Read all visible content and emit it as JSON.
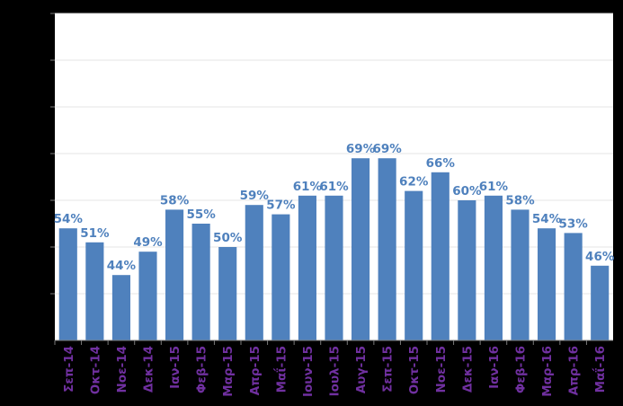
{
  "chart_data": {
    "type": "bar",
    "categories": [
      "Σεπ-14",
      "Οκτ-14",
      "Νοε-14",
      "Δεκ-14",
      "Ιαν-15",
      "Φεβ-15",
      "Μαρ-15",
      "Απρ-15",
      "Μαΐ-15",
      "Ιουν-15",
      "Ιουλ-15",
      "Αυγ-15",
      "Σεπ-15",
      "Οκτ-15",
      "Νοε-15",
      "Δεκ-15",
      "Ιαν-16",
      "Φεβ-16",
      "Μαρ-16",
      "Απρ-16",
      "Μαΐ-16"
    ],
    "values": [
      54,
      51,
      44,
      49,
      58,
      55,
      50,
      59,
      57,
      61,
      61,
      69,
      69,
      62,
      66,
      60,
      61,
      58,
      54,
      53,
      46
    ],
    "value_labels": [
      "54%",
      "51%",
      "44%",
      "49%",
      "58%",
      "55%",
      "50%",
      "59%",
      "57%",
      "61%",
      "61%",
      "69%",
      "69%",
      "62%",
      "66%",
      "60%",
      "61%",
      "58%",
      "54%",
      "53%",
      "46%"
    ],
    "ylim": [
      30,
      100
    ],
    "grid": true,
    "legend": "none",
    "colors": {
      "bar": "#4f81bd",
      "data_label": "#4f81bd",
      "tick_label": "#7030a0",
      "background": "#000000",
      "plot_area": "#ffffff",
      "gridline": "#e6e6e6"
    }
  }
}
